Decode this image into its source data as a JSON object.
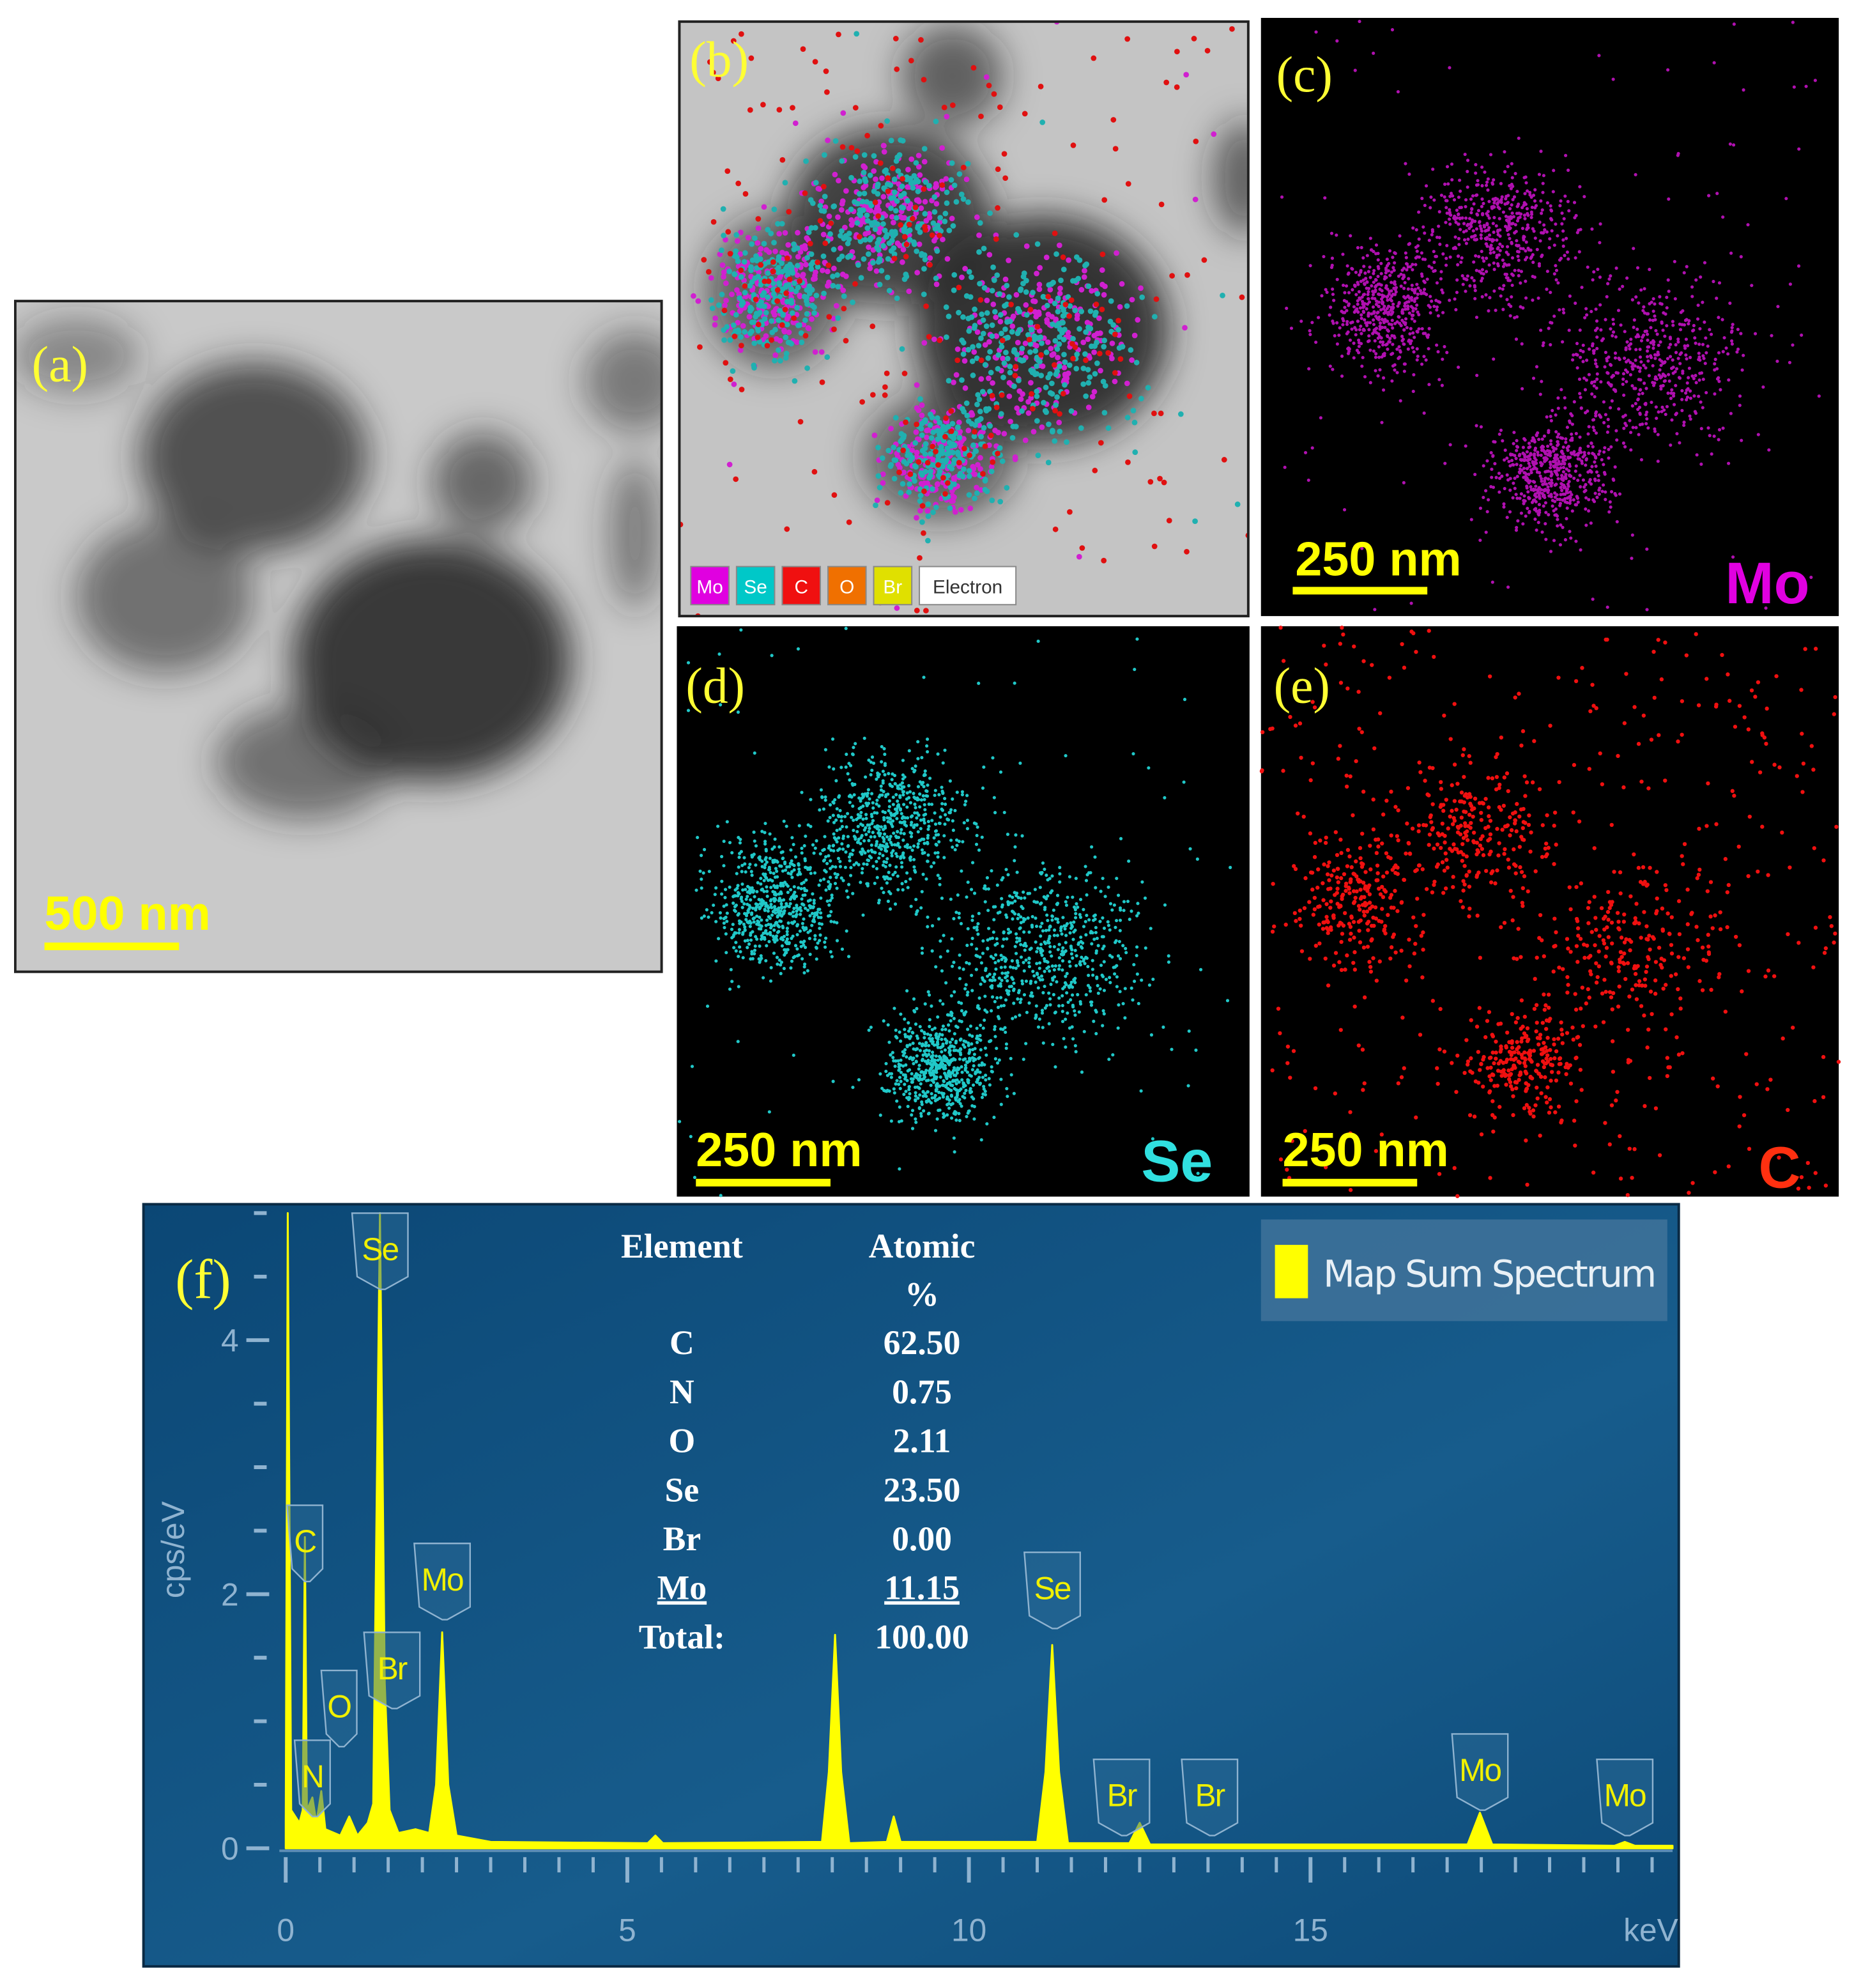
{
  "panels": [
    {
      "label": "(a)",
      "scale_bar": "500 nm"
    },
    {
      "label": "(b)",
      "legend": [
        "Mo",
        "Se",
        "C",
        "O",
        "Br",
        "Electron"
      ]
    },
    {
      "label": "(c)",
      "scale_bar": "250 nm",
      "element": "Mo"
    },
    {
      "label": "(d)",
      "scale_bar": "250 nm",
      "element": "Se"
    },
    {
      "label": "(e)",
      "scale_bar": "250 nm",
      "element": "C"
    }
  ],
  "chart_data": {
    "type": "line",
    "label": "(f)",
    "xlabel": "keV",
    "ylabel": "cps/eV",
    "xlim": [
      0,
      20.3
    ],
    "ylim": [
      0,
      5
    ],
    "xticks": [
      0,
      5,
      10,
      15
    ],
    "yticks": [
      0,
      2,
      4
    ],
    "xminorticks": [
      0.5,
      1,
      1.5,
      2,
      2.5,
      3,
      3.5,
      4,
      4.5,
      5.5,
      6,
      6.5,
      7,
      7.5,
      8,
      8.5,
      9,
      9.5,
      10.5,
      11,
      11.5,
      12,
      12.5,
      13,
      13.5,
      14,
      14.5,
      15.5,
      16,
      16.5,
      17,
      17.5,
      18,
      18.5,
      19,
      19.5,
      20
    ],
    "yminorticks": [
      0.5,
      1,
      1.5,
      2.5,
      3,
      3.5,
      4.5,
      5
    ],
    "series": [
      {
        "name": "Map Sum Spectrum",
        "color": "#ffff00",
        "x": [
          0,
          0.03,
          0.08,
          0.2,
          0.25,
          0.28,
          0.31,
          0.39,
          0.45,
          0.52,
          0.58,
          0.8,
          0.93,
          1.05,
          1.2,
          1.28,
          1.38,
          1.45,
          1.52,
          1.65,
          1.9,
          2.1,
          2.2,
          2.29,
          2.38,
          2.5,
          3,
          5.3,
          5.41,
          5.52,
          7.85,
          7.95,
          8.04,
          8.13,
          8.25,
          8.8,
          8.9,
          9.0,
          11.0,
          11.12,
          11.22,
          11.32,
          11.45,
          12.35,
          12.5,
          12.65,
          17.3,
          17.48,
          17.66,
          19.45,
          19.6,
          19.75,
          20.3
        ],
        "values": [
          0.2,
          5,
          0.3,
          0.2,
          0.3,
          2.45,
          0.3,
          0.4,
          0.2,
          0.45,
          0.15,
          0.1,
          0.25,
          0.1,
          0.2,
          0.35,
          5,
          1.3,
          0.3,
          0.12,
          0.15,
          0.12,
          0.5,
          1.7,
          0.5,
          0.1,
          0.05,
          0.04,
          0.1,
          0.04,
          0.05,
          0.6,
          1.68,
          0.6,
          0.04,
          0.05,
          0.25,
          0.05,
          0.05,
          0.6,
          1.6,
          0.6,
          0.04,
          0.04,
          0.2,
          0.03,
          0.03,
          0.28,
          0.03,
          0.02,
          0.05,
          0.02,
          0.02
        ]
      }
    ],
    "peak_labels": [
      {
        "text": "C",
        "x": 0.28
      },
      {
        "text": "N",
        "x": 0.39
      },
      {
        "text": "O",
        "x": 0.52
      },
      {
        "text": "Se",
        "x": 1.38
      },
      {
        "text": "Br",
        "x": 1.48
      },
      {
        "text": "Mo",
        "x": 2.29
      },
      {
        "text": "Se",
        "x": 11.22
      },
      {
        "text": "Br",
        "x": 11.9
      },
      {
        "text": "Br",
        "x": 13.3
      },
      {
        "text": "Mo",
        "x": 17.48
      },
      {
        "text": "Mo",
        "x": 19.6
      }
    ],
    "table": {
      "header": [
        "Element",
        "Atomic",
        "%"
      ],
      "rows": [
        [
          "C",
          "62.50"
        ],
        [
          "N",
          "0.75"
        ],
        [
          "O",
          "2.11"
        ],
        [
          "Se",
          "23.50"
        ],
        [
          "Br",
          "0.00"
        ],
        [
          "Mo",
          "11.15"
        ]
      ],
      "total": [
        "Total:",
        "100.00"
      ]
    }
  }
}
